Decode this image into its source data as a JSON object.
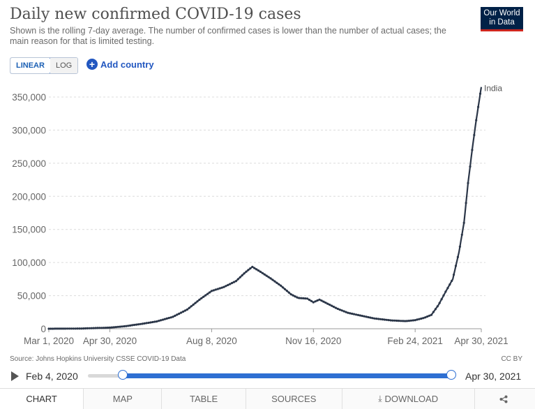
{
  "header": {
    "title": "Daily new confirmed COVID-19 cases",
    "subtitle": "Shown is the rolling 7-day average. The number of confirmed cases is lower than the number of actual cases; the main reason for that is limited testing.",
    "logo_line1": "Our World",
    "logo_line2": "in Data"
  },
  "controls": {
    "linear_label": "LINEAR",
    "log_label": "LOG",
    "add_country_label": "Add country",
    "add_icon": "plus-circle-icon"
  },
  "chart_data": {
    "type": "line",
    "yscale": "linear",
    "ylim": [
      0,
      370000
    ],
    "yticks": [
      0,
      50000,
      100000,
      150000,
      200000,
      250000,
      300000,
      350000
    ],
    "ytick_labels": [
      "0",
      "50,000",
      "100,000",
      "150,000",
      "200,000",
      "250,000",
      "300,000",
      "350,000"
    ],
    "x_range": [
      "2020-03-01",
      "2021-04-30"
    ],
    "xticks": [
      "2020-03-01",
      "2020-04-30",
      "2020-08-08",
      "2020-11-16",
      "2021-02-24",
      "2021-04-30"
    ],
    "xtick_labels": [
      "Mar 1, 2020",
      "Apr 30, 2020",
      "Aug 8, 2020",
      "Nov 16, 2020",
      "Feb 24, 2021",
      "Apr 30, 2021"
    ],
    "grid": true,
    "line_color": "#2b3648",
    "series": [
      {
        "name": "India",
        "points": [
          [
            "2020-03-01",
            0
          ],
          [
            "2020-04-01",
            300
          ],
          [
            "2020-04-30",
            1700
          ],
          [
            "2020-05-15",
            3800
          ],
          [
            "2020-06-01",
            7500
          ],
          [
            "2020-06-15",
            11000
          ],
          [
            "2020-07-01",
            18000
          ],
          [
            "2020-07-15",
            29000
          ],
          [
            "2020-07-28",
            45000
          ],
          [
            "2020-08-08",
            57000
          ],
          [
            "2020-08-20",
            63000
          ],
          [
            "2020-09-01",
            72000
          ],
          [
            "2020-09-10",
            85000
          ],
          [
            "2020-09-17",
            93500
          ],
          [
            "2020-09-25",
            86000
          ],
          [
            "2020-10-05",
            76000
          ],
          [
            "2020-10-15",
            65000
          ],
          [
            "2020-10-25",
            52000
          ],
          [
            "2020-11-01",
            46500
          ],
          [
            "2020-11-10",
            45500
          ],
          [
            "2020-11-16",
            40000
          ],
          [
            "2020-11-22",
            44000
          ],
          [
            "2020-12-01",
            37000
          ],
          [
            "2020-12-10",
            30000
          ],
          [
            "2020-12-20",
            24000
          ],
          [
            "2021-01-01",
            20000
          ],
          [
            "2021-01-15",
            15500
          ],
          [
            "2021-02-01",
            12500
          ],
          [
            "2021-02-15",
            11500
          ],
          [
            "2021-02-24",
            13000
          ],
          [
            "2021-03-05",
            16500
          ],
          [
            "2021-03-12",
            21000
          ],
          [
            "2021-03-19",
            36000
          ],
          [
            "2021-03-26",
            56000
          ],
          [
            "2021-04-02",
            75000
          ],
          [
            "2021-04-08",
            115000
          ],
          [
            "2021-04-13",
            160000
          ],
          [
            "2021-04-17",
            220000
          ],
          [
            "2021-04-21",
            270000
          ],
          [
            "2021-04-25",
            315000
          ],
          [
            "2021-04-28",
            345000
          ],
          [
            "2021-04-30",
            365000
          ]
        ]
      }
    ]
  },
  "footer": {
    "source": "Source: Johns Hopkins University CSSE COVID-19 Data",
    "license": "CC BY"
  },
  "timeline": {
    "start_label": "Feb 4, 2020",
    "end_label": "Apr 30, 2021",
    "range_start": 0.055,
    "range_end": 0.995
  },
  "tabs": [
    {
      "label": "CHART"
    },
    {
      "label": "MAP"
    },
    {
      "label": "TABLE"
    },
    {
      "label": "SOURCES"
    },
    {
      "label": "DOWNLOAD",
      "icon": "download-icon"
    },
    {
      "label": "",
      "icon": "share-icon"
    }
  ]
}
